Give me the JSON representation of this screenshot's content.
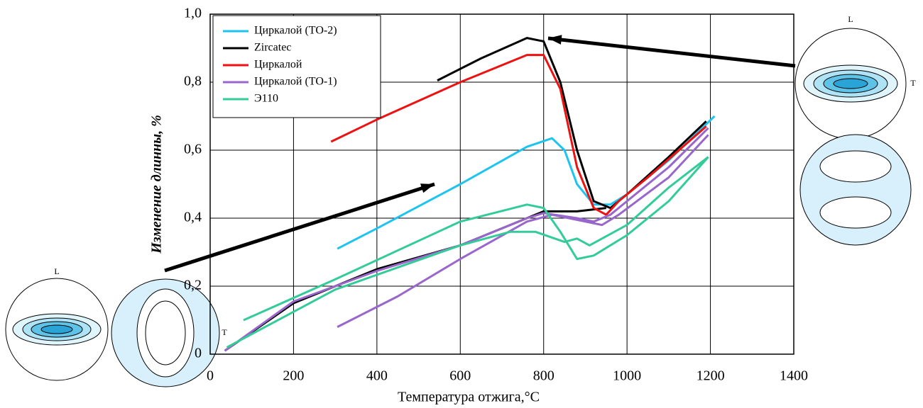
{
  "chart_data": {
    "type": "line",
    "xlabel": "Температура отжига,°С",
    "ylabel": "Изменение длинны, %",
    "xlim": [
      0,
      1400
    ],
    "xticks": [
      0,
      200,
      400,
      600,
      800,
      1000,
      1200,
      1400
    ],
    "ylim": [
      0,
      1
    ],
    "yticks": [
      0,
      {
        "value": 0.2,
        "label": "0,2"
      },
      {
        "value": 0.4,
        "label": "0,4"
      },
      {
        "value": 0.6,
        "label": "0,6"
      },
      {
        "value": 0.8,
        "label": "0,8"
      },
      {
        "value": 1,
        "label": "1,0"
      }
    ],
    "grid": true,
    "legend": "upper left",
    "series": [
      {
        "name": "Циркалой (ТО-2)",
        "color": "#1ec4f0",
        "x": [
          305,
          400,
          600,
          760,
          820,
          850,
          880,
          920,
          960,
          1000,
          1100,
          1210
        ],
        "values": [
          0.31,
          0.37,
          0.5,
          0.61,
          0.635,
          0.6,
          0.5,
          0.44,
          0.44,
          0.47,
          0.57,
          0.7
        ]
      },
      {
        "name": "Zircatec",
        "color": "#000000",
        "x": [
          545,
          650,
          760,
          800,
          840,
          880,
          920,
          960,
          1000,
          1100,
          1190,
          null,
          35,
          200,
          400,
          600,
          760,
          800,
          880,
          950
        ],
        "values": [
          0.805,
          0.87,
          0.93,
          0.92,
          0.8,
          0.6,
          0.45,
          0.43,
          0.47,
          0.58,
          0.685,
          null,
          0.01,
          0.15,
          0.25,
          0.32,
          0.4,
          0.42,
          0.42,
          0.43
        ]
      },
      {
        "name": "Циркалой",
        "color": "#ee1111",
        "x": [
          290,
          400,
          600,
          760,
          800,
          840,
          880,
          920,
          950,
          980,
          1050,
          1190
        ],
        "values": [
          0.625,
          0.69,
          0.8,
          0.88,
          0.88,
          0.78,
          0.55,
          0.43,
          0.41,
          0.45,
          0.52,
          0.67
        ]
      },
      {
        "name": "Циркалой (ТО-1)",
        "color": "#9966cc",
        "x": [
          35,
          200,
          400,
          600,
          760,
          800,
          880,
          920,
          960,
          1000,
          1100,
          1195,
          null,
          305,
          450,
          600,
          760,
          820,
          900,
          940,
          980,
          1100,
          1195
        ],
        "values": [
          0.01,
          0.155,
          0.245,
          0.32,
          0.4,
          0.415,
          0.4,
          0.39,
          0.41,
          0.45,
          0.55,
          0.665,
          null,
          0.08,
          0.17,
          0.28,
          0.39,
          0.41,
          0.39,
          0.38,
          0.41,
          0.52,
          0.645
        ]
      },
      {
        "name": "Э110",
        "color": "#33cc99",
        "x": [
          80,
          300,
          600,
          760,
          800,
          840,
          880,
          920,
          1000,
          1100,
          1195,
          null,
          40,
          300,
          600,
          720,
          780,
          850,
          880,
          910,
          1000,
          1100,
          1195
        ],
        "values": [
          0.1,
          0.22,
          0.39,
          0.44,
          0.43,
          0.36,
          0.28,
          0.29,
          0.35,
          0.45,
          0.58,
          null,
          0.02,
          0.19,
          0.32,
          0.36,
          0.36,
          0.33,
          0.34,
          0.32,
          0.38,
          0.49,
          0.58
        ]
      }
    ]
  },
  "pole_labels": [
    "L",
    "T",
    "L",
    "T"
  ]
}
